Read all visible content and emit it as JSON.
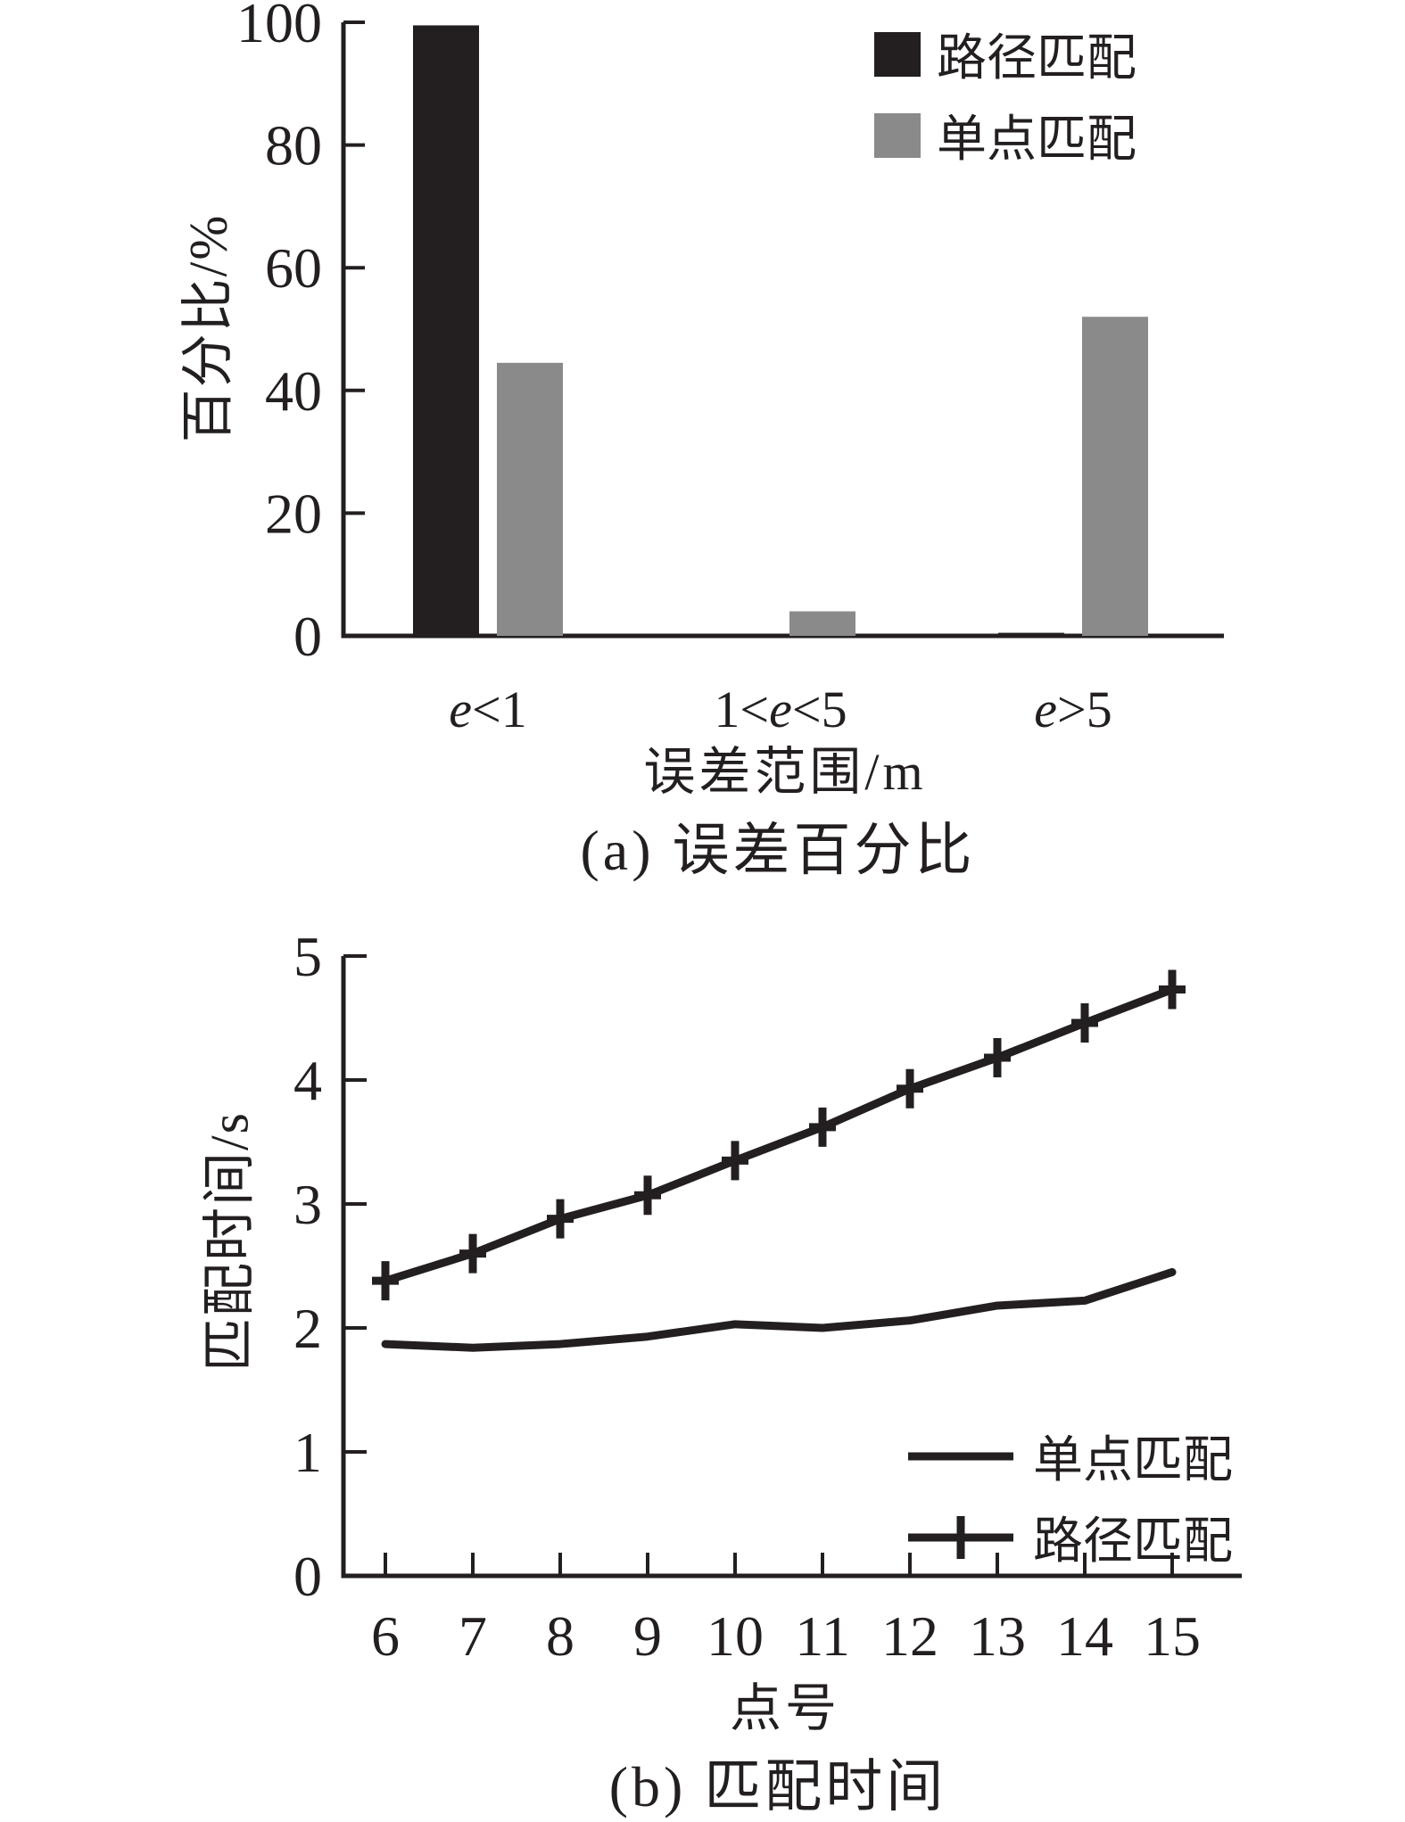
{
  "colors": {
    "black": "#231f20",
    "gray": "#8a8a8a"
  },
  "chart_data": [
    {
      "type": "bar",
      "panel": "a",
      "title": "(a) 误差百分比",
      "xlabel": "误差范围/m",
      "ylabel": "百分比/%",
      "ylim": [
        0,
        100
      ],
      "yticks": [
        0,
        20,
        40,
        60,
        80,
        100
      ],
      "categories": [
        "e<1",
        "1<e<5",
        "e>5"
      ],
      "series": [
        {
          "name": "路径匹配",
          "color": "#231f20",
          "values": [
            99.5,
            0,
            0.5
          ]
        },
        {
          "name": "单点匹配",
          "color": "#8a8a8a",
          "values": [
            44.5,
            4,
            52
          ]
        }
      ],
      "legend_position": "top-right",
      "grid": false
    },
    {
      "type": "line",
      "panel": "b",
      "title": "(b) 匹配时间",
      "xlabel": "点号",
      "ylabel": "匹配时间/s",
      "ylim": [
        0,
        5
      ],
      "yticks": [
        0,
        1,
        2,
        3,
        4,
        5
      ],
      "x": [
        6,
        7,
        8,
        9,
        10,
        11,
        12,
        13,
        14,
        15
      ],
      "series": [
        {
          "name": "单点匹配",
          "marker": "none",
          "color": "#231f20",
          "values": [
            1.87,
            1.84,
            1.87,
            1.93,
            2.03,
            2.0,
            2.06,
            2.18,
            2.22,
            2.45
          ]
        },
        {
          "name": "路径匹配",
          "marker": "plus",
          "color": "#231f20",
          "values": [
            2.38,
            2.6,
            2.88,
            3.07,
            3.35,
            3.62,
            3.93,
            4.18,
            4.46,
            4.73
          ]
        }
      ],
      "legend_position": "center-right",
      "grid": false
    }
  ]
}
